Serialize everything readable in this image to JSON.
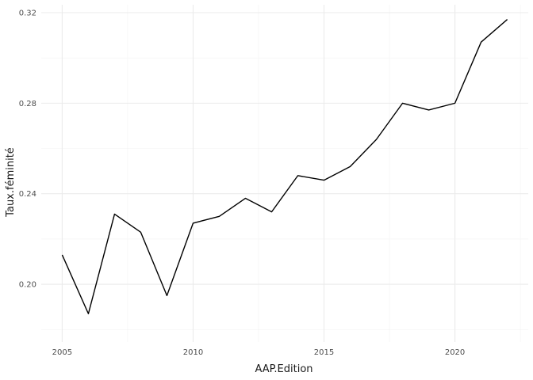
{
  "chart_data": {
    "type": "line",
    "title": "",
    "xlabel": "AAP.Edition",
    "ylabel": "Taux.féminité",
    "xlim": [
      2004.2,
      2022.8
    ],
    "ylim": [
      0.1745,
      0.3235
    ],
    "x_ticks": [
      2005,
      2010,
      2015,
      2020
    ],
    "x_tick_labels": [
      "2005",
      "2010",
      "2015",
      "2020"
    ],
    "x_minor_ticks": [
      2007.5,
      2012.5,
      2017.5,
      2022.5
    ],
    "y_ticks": [
      0.2,
      0.24,
      0.28,
      0.32
    ],
    "y_tick_labels": [
      "0.20",
      "0.24",
      "0.28",
      "0.32"
    ],
    "y_minor_ticks": [
      0.18,
      0.22,
      0.26,
      0.3
    ],
    "grid": true,
    "legend": "none",
    "line_color": "#000000",
    "x": [
      2005,
      2006,
      2007,
      2008,
      2009,
      2010,
      2011,
      2012,
      2013,
      2014,
      2015,
      2016,
      2017,
      2018,
      2019,
      2020,
      2021,
      2022
    ],
    "series": [
      {
        "values": [
          0.213,
          0.187,
          0.231,
          0.223,
          0.195,
          0.227,
          0.23,
          0.238,
          0.232,
          0.248,
          0.246,
          0.252,
          0.264,
          0.28,
          0.277,
          0.28,
          0.307,
          0.317
        ]
      }
    ]
  }
}
